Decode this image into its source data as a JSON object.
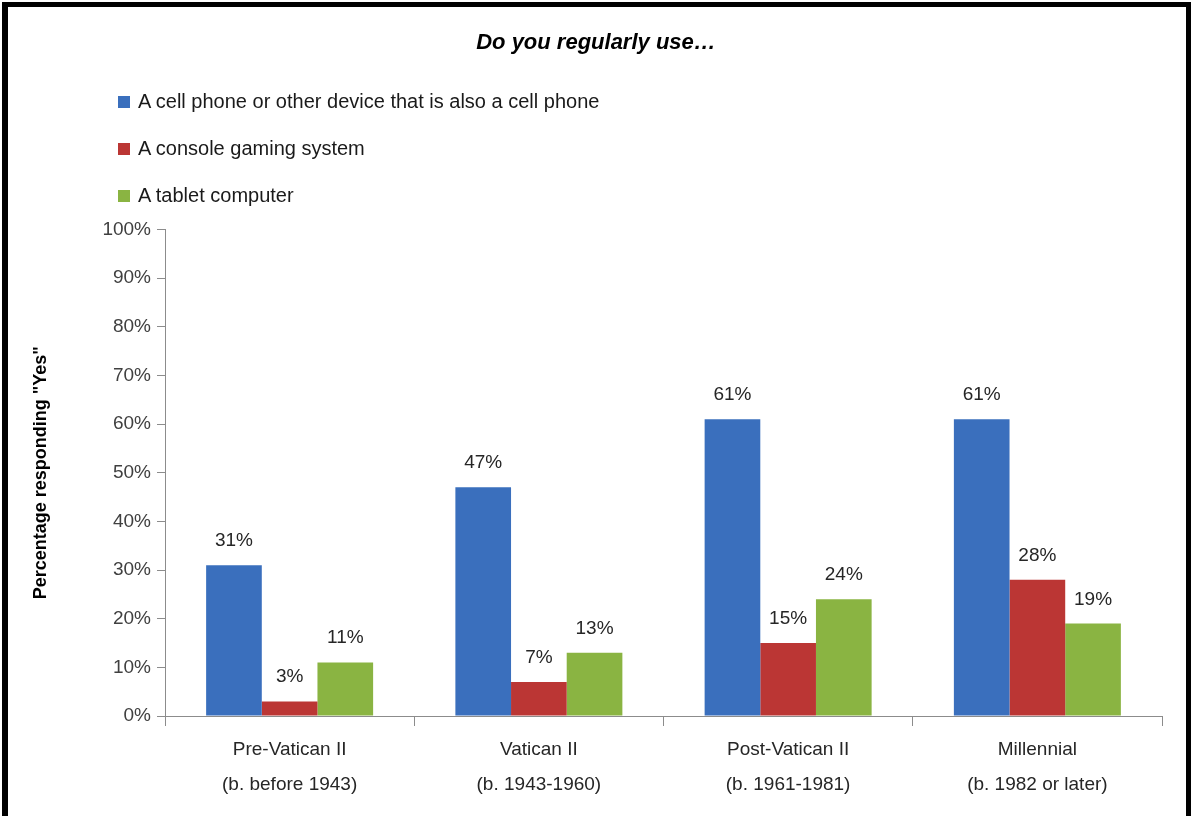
{
  "chart_data": {
    "type": "bar",
    "title": "Do you regularly use…",
    "ylabel": "Percentage responding \"Yes\"",
    "categories": [
      "Pre-Vatican II\n(b. before 1943)",
      "Vatican II\n(b. 1943-1960)",
      "Post-Vatican II\n(b. 1961-1981)",
      "Millennial\n(b. 1982 or later)"
    ],
    "series": [
      {
        "name": "A cell phone or other device that is also a cell phone",
        "color": "#3a6fbd",
        "values": [
          31,
          47,
          61,
          61
        ],
        "value_labels": [
          "31%",
          "47%",
          "61%",
          "61%"
        ]
      },
      {
        "name": "A console gaming system",
        "color": "#bb3634",
        "values": [
          3,
          7,
          15,
          28
        ],
        "value_labels": [
          "3%",
          "7%",
          "15%",
          "28%"
        ]
      },
      {
        "name": "A tablet computer",
        "color": "#8ab442",
        "values": [
          11,
          13,
          24,
          19
        ],
        "value_labels": [
          "11%",
          "13%",
          "24%",
          "19%"
        ]
      }
    ],
    "ylim": [
      0,
      100
    ],
    "yticks": [
      {
        "value": 0,
        "label": "0%"
      },
      {
        "value": 10,
        "label": "10%"
      },
      {
        "value": 20,
        "label": "20%"
      },
      {
        "value": 30,
        "label": "30%"
      },
      {
        "value": 40,
        "label": "40%"
      },
      {
        "value": 50,
        "label": "50%"
      },
      {
        "value": 60,
        "label": "60%"
      },
      {
        "value": 70,
        "label": "70%"
      },
      {
        "value": 80,
        "label": "80%"
      },
      {
        "value": 90,
        "label": "90%"
      },
      {
        "value": 100,
        "label": "100%"
      }
    ],
    "legend": "top left"
  }
}
